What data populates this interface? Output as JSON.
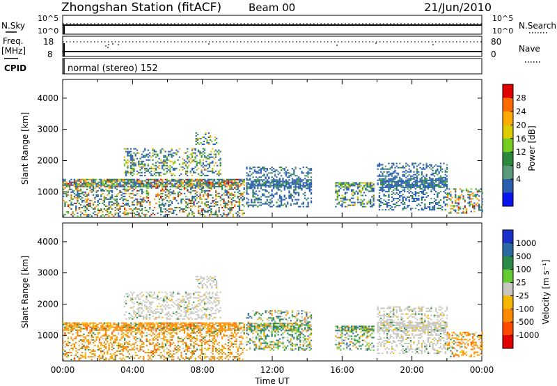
{
  "header": {
    "station": "Zhongshan Station (fitACF)",
    "beam": "Beam 00",
    "date": "21/Jun/2010"
  },
  "strip_labels": {
    "nsky": "N.Sky",
    "nsearch": "N.Search",
    "freq": "Freq.",
    "freq_unit": "[MHz]",
    "nave": "Nave",
    "cpid": "CPID",
    "ytick_top_left": "10^5",
    "ytick_bottom_left": "10^0",
    "ytick_top_right": "10^5",
    "ytick_bottom_right": "10^0",
    "freq_top": "18",
    "freq_bottom": "8",
    "nave_top": "80",
    "nave_bottom": "0"
  },
  "cpid_text": "normal (stereo) 152",
  "axes": {
    "y_label": "Slant Range [km]",
    "x_label": "Time UT",
    "y_ticks": [
      "4000",
      "3000",
      "2000",
      "1000"
    ],
    "x_ticks": [
      "00:00",
      "04:00",
      "08:00",
      "12:00",
      "16:00",
      "20:00",
      "00:00"
    ]
  },
  "chart_data": [
    {
      "type": "heatmap",
      "title": "",
      "xlabel": "Time UT",
      "ylabel": "Slant Range [km]",
      "xlim": [
        0,
        24
      ],
      "ylim": [
        180,
        4600
      ],
      "colorbar": {
        "label": "Power [dB]",
        "ticks": [
          "28",
          "24",
          "20",
          "16",
          "12",
          "8",
          "4"
        ],
        "colors": [
          "#e00000",
          "#ff6a00",
          "#ffaa00",
          "#ddcc00",
          "#77cc22",
          "#2a8a3a",
          "#5a9a7a",
          "#2a5fb0",
          "#0a14ee"
        ]
      },
      "echo_regions": [
        {
          "t0": 0.0,
          "t1": 10.4,
          "r0": 200,
          "r1": 1400,
          "dom": "low-mid"
        },
        {
          "t0": 3.5,
          "t1": 9.0,
          "r0": 1500,
          "r1": 2400,
          "dom": "mid"
        },
        {
          "t0": 7.6,
          "t1": 8.8,
          "r0": 2500,
          "r1": 2900,
          "dom": "mid"
        },
        {
          "t0": 10.5,
          "t1": 14.2,
          "r0": 500,
          "r1": 1800,
          "dom": "blue"
        },
        {
          "t0": 15.6,
          "t1": 17.8,
          "r0": 500,
          "r1": 1300,
          "dom": "mid"
        },
        {
          "t0": 18.0,
          "t1": 22.0,
          "r0": 400,
          "r1": 1900,
          "dom": "blue"
        },
        {
          "t0": 22.0,
          "t1": 24.0,
          "r0": 300,
          "r1": 1100,
          "dom": "low-mid"
        }
      ]
    },
    {
      "type": "heatmap",
      "title": "",
      "xlabel": "Time UT",
      "ylabel": "Slant Range [km]",
      "xlim": [
        0,
        24
      ],
      "ylim": [
        180,
        4600
      ],
      "colorbar": {
        "label": "Velocity [m s⁻¹]",
        "ticks": [
          "1000",
          "500",
          "100",
          "25",
          "-25",
          "-100",
          "-500",
          "-1000"
        ],
        "colors": [
          "#1a2fc8",
          "#2a6aa0",
          "#2a8a4a",
          "#66cc33",
          "#c8c8c0",
          "#f5b800",
          "#ff8a00",
          "#ff4a00",
          "#e00000"
        ]
      },
      "echo_regions": [
        {
          "t0": 0.0,
          "t1": 10.4,
          "r0": 200,
          "r1": 1400,
          "dom": "neg"
        },
        {
          "t0": 3.5,
          "t1": 9.0,
          "r0": 1500,
          "r1": 2400,
          "dom": "grey"
        },
        {
          "t0": 7.6,
          "t1": 8.8,
          "r0": 2500,
          "r1": 2900,
          "dom": "grey"
        },
        {
          "t0": 10.5,
          "t1": 14.2,
          "r0": 500,
          "r1": 1800,
          "dom": "mix"
        },
        {
          "t0": 15.6,
          "t1": 17.8,
          "r0": 500,
          "r1": 1300,
          "dom": "mix"
        },
        {
          "t0": 18.0,
          "t1": 22.0,
          "r0": 400,
          "r1": 1900,
          "dom": "grey"
        },
        {
          "t0": 22.0,
          "t1": 24.0,
          "r0": 300,
          "r1": 1100,
          "dom": "neg"
        }
      ]
    }
  ]
}
